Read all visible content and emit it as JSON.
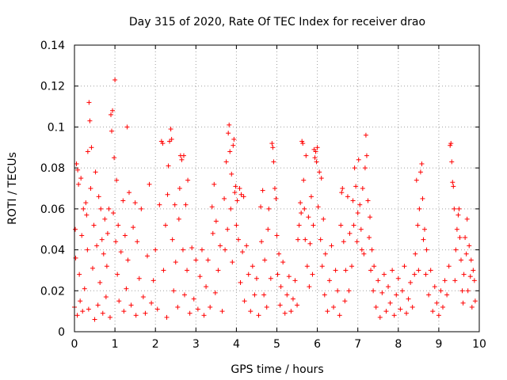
{
  "chart_data": {
    "type": "scatter",
    "title": "Day 315 of 2020, Rate Of TEC Index for receiver drao",
    "xlabel": "GPS time / hours",
    "ylabel": "ROTI / TECUs",
    "xlim": [
      0,
      10
    ],
    "ylim": [
      0,
      0.14
    ],
    "xticks": [
      "0",
      "1",
      "2",
      "3",
      "4",
      "5",
      "6",
      "7",
      "8",
      "9",
      "10"
    ],
    "yticks": [
      "0",
      "0.02",
      "0.04",
      "0.06",
      "0.08",
      "0.1",
      "0.12",
      "0.14"
    ],
    "grid": true,
    "marker": "+",
    "color": "#ff0000",
    "series": [
      {
        "values": [
          [
            0.0,
            0.012
          ],
          [
            0.02,
            0.05
          ],
          [
            0.03,
            0.036
          ],
          [
            0.05,
            0.082
          ],
          [
            0.07,
            0.008
          ],
          [
            0.08,
            0.079
          ],
          [
            0.1,
            0.072
          ],
          [
            0.12,
            0.028
          ],
          [
            0.14,
            0.015
          ],
          [
            0.16,
            0.075
          ],
          [
            0.18,
            0.047
          ],
          [
            0.2,
            0.01
          ],
          [
            0.22,
            0.06
          ],
          [
            0.25,
            0.021
          ],
          [
            0.28,
            0.063
          ],
          [
            0.3,
            0.057
          ],
          [
            0.32,
            0.04
          ],
          [
            0.33,
            0.088
          ],
          [
            0.35,
            0.011
          ],
          [
            0.36,
            0.112
          ],
          [
            0.38,
            0.103
          ],
          [
            0.4,
            0.07
          ],
          [
            0.42,
            0.09
          ],
          [
            0.45,
            0.031
          ],
          [
            0.48,
            0.052
          ],
          [
            0.5,
            0.006
          ],
          [
            0.52,
            0.078
          ],
          [
            0.55,
            0.042
          ],
          [
            0.58,
            0.013
          ],
          [
            0.6,
            0.066
          ],
          [
            0.63,
            0.024
          ],
          [
            0.65,
            0.06
          ],
          [
            0.68,
            0.045
          ],
          [
            0.7,
            0.009
          ],
          [
            0.72,
            0.038
          ],
          [
            0.75,
            0.055
          ],
          [
            0.78,
            0.017
          ],
          [
            0.8,
            0.032
          ],
          [
            0.82,
            0.048
          ],
          [
            0.85,
            0.06
          ],
          [
            0.88,
            0.007
          ],
          [
            0.9,
            0.106
          ],
          [
            0.92,
            0.098
          ],
          [
            0.94,
            0.108
          ],
          [
            0.96,
            0.058
          ],
          [
            0.98,
            0.085
          ],
          [
            1.0,
            0.123
          ],
          [
            1.02,
            0.044
          ],
          [
            1.04,
            0.074
          ],
          [
            1.06,
            0.028
          ],
          [
            1.08,
            0.052
          ],
          [
            1.1,
            0.015
          ],
          [
            1.15,
            0.039
          ],
          [
            1.2,
            0.064
          ],
          [
            1.22,
            0.01
          ],
          [
            1.25,
            0.047
          ],
          [
            1.28,
            0.021
          ],
          [
            1.3,
            0.1
          ],
          [
            1.32,
            0.035
          ],
          [
            1.35,
            0.068
          ],
          [
            1.4,
            0.013
          ],
          [
            1.45,
            0.051
          ],
          [
            1.5,
            0.063
          ],
          [
            1.52,
            0.008
          ],
          [
            1.55,
            0.044
          ],
          [
            1.6,
            0.026
          ],
          [
            1.65,
            0.06
          ],
          [
            1.7,
            0.017
          ],
          [
            1.75,
            0.009
          ],
          [
            1.8,
            0.037
          ],
          [
            1.85,
            0.072
          ],
          [
            1.9,
            0.014
          ],
          [
            1.95,
            0.025
          ],
          [
            2.0,
            0.04
          ],
          [
            2.05,
            0.011
          ],
          [
            2.1,
            0.062
          ],
          [
            2.15,
            0.093
          ],
          [
            2.18,
            0.092
          ],
          [
            2.2,
            0.03
          ],
          [
            2.25,
            0.052
          ],
          [
            2.28,
            0.007
          ],
          [
            2.3,
            0.067
          ],
          [
            2.32,
            0.081
          ],
          [
            2.35,
            0.093
          ],
          [
            2.38,
            0.099
          ],
          [
            2.4,
            0.094
          ],
          [
            2.42,
            0.045
          ],
          [
            2.45,
            0.02
          ],
          [
            2.48,
            0.062
          ],
          [
            2.5,
            0.034
          ],
          [
            2.55,
            0.012
          ],
          [
            2.58,
            0.055
          ],
          [
            2.6,
            0.07
          ],
          [
            2.62,
            0.086
          ],
          [
            2.65,
            0.084
          ],
          [
            2.68,
            0.04
          ],
          [
            2.7,
            0.086
          ],
          [
            2.72,
            0.018
          ],
          [
            2.75,
            0.062
          ],
          [
            2.78,
            0.03
          ],
          [
            2.8,
            0.074
          ],
          [
            2.85,
            0.009
          ],
          [
            2.9,
            0.041
          ],
          [
            2.95,
            0.016
          ],
          [
            3.0,
            0.035
          ],
          [
            3.05,
            0.011
          ],
          [
            3.1,
            0.027
          ],
          [
            3.15,
            0.04
          ],
          [
            3.2,
            0.008
          ],
          [
            3.25,
            0.022
          ],
          [
            3.3,
            0.035
          ],
          [
            3.35,
            0.012
          ],
          [
            3.4,
            0.061
          ],
          [
            3.42,
            0.048
          ],
          [
            3.45,
            0.072
          ],
          [
            3.48,
            0.019
          ],
          [
            3.5,
            0.054
          ],
          [
            3.55,
            0.03
          ],
          [
            3.6,
            0.042
          ],
          [
            3.65,
            0.01
          ],
          [
            3.7,
            0.065
          ],
          [
            3.72,
            0.04
          ],
          [
            3.75,
            0.083
          ],
          [
            3.78,
            0.05
          ],
          [
            3.8,
            0.097
          ],
          [
            3.82,
            0.101
          ],
          [
            3.84,
            0.088
          ],
          [
            3.86,
            0.06
          ],
          [
            3.88,
            0.077
          ],
          [
            3.9,
            0.034
          ],
          [
            3.92,
            0.091
          ],
          [
            3.94,
            0.094
          ],
          [
            3.96,
            0.068
          ],
          [
            3.98,
            0.071
          ],
          [
            4.0,
            0.052
          ],
          [
            4.02,
            0.064
          ],
          [
            4.05,
            0.045
          ],
          [
            4.08,
            0.07
          ],
          [
            4.1,
            0.024
          ],
          [
            4.12,
            0.067
          ],
          [
            4.15,
            0.039
          ],
          [
            4.18,
            0.066
          ],
          [
            4.2,
            0.015
          ],
          [
            4.25,
            0.042
          ],
          [
            4.3,
            0.028
          ],
          [
            4.35,
            0.01
          ],
          [
            4.4,
            0.032
          ],
          [
            4.45,
            0.018
          ],
          [
            4.5,
            0.026
          ],
          [
            4.55,
            0.008
          ],
          [
            4.6,
            0.061
          ],
          [
            4.62,
            0.044
          ],
          [
            4.65,
            0.069
          ],
          [
            4.68,
            0.018
          ],
          [
            4.7,
            0.035
          ],
          [
            4.75,
            0.012
          ],
          [
            4.78,
            0.05
          ],
          [
            4.8,
            0.06
          ],
          [
            4.85,
            0.026
          ],
          [
            4.88,
            0.092
          ],
          [
            4.9,
            0.09
          ],
          [
            4.92,
            0.083
          ],
          [
            4.95,
            0.07
          ],
          [
            4.98,
            0.065
          ],
          [
            5.0,
            0.047
          ],
          [
            5.02,
            0.028
          ],
          [
            5.05,
            0.038
          ],
          [
            5.08,
            0.013
          ],
          [
            5.1,
            0.022
          ],
          [
            5.15,
            0.034
          ],
          [
            5.2,
            0.009
          ],
          [
            5.25,
            0.018
          ],
          [
            5.3,
            0.027
          ],
          [
            5.35,
            0.01
          ],
          [
            5.4,
            0.016
          ],
          [
            5.45,
            0.025
          ],
          [
            5.5,
            0.013
          ],
          [
            5.52,
            0.045
          ],
          [
            5.55,
            0.052
          ],
          [
            5.58,
            0.063
          ],
          [
            5.6,
            0.058
          ],
          [
            5.62,
            0.093
          ],
          [
            5.64,
            0.092
          ],
          [
            5.66,
            0.074
          ],
          [
            5.68,
            0.06
          ],
          [
            5.7,
            0.045
          ],
          [
            5.72,
            0.086
          ],
          [
            5.75,
            0.032
          ],
          [
            5.78,
            0.056
          ],
          [
            5.8,
            0.022
          ],
          [
            5.82,
            0.043
          ],
          [
            5.85,
            0.066
          ],
          [
            5.88,
            0.028
          ],
          [
            5.9,
            0.052
          ],
          [
            5.92,
            0.089
          ],
          [
            5.94,
            0.085
          ],
          [
            5.96,
            0.088
          ],
          [
            5.98,
            0.083
          ],
          [
            6.0,
            0.09
          ],
          [
            6.02,
            0.061
          ],
          [
            6.05,
            0.078
          ],
          [
            6.08,
            0.045
          ],
          [
            6.1,
            0.075
          ],
          [
            6.12,
            0.032
          ],
          [
            6.15,
            0.055
          ],
          [
            6.18,
            0.018
          ],
          [
            6.2,
            0.038
          ],
          [
            6.25,
            0.01
          ],
          [
            6.3,
            0.025
          ],
          [
            6.35,
            0.042
          ],
          [
            6.4,
            0.012
          ],
          [
            6.45,
            0.03
          ],
          [
            6.5,
            0.02
          ],
          [
            6.55,
            0.008
          ],
          [
            6.58,
            0.052
          ],
          [
            6.6,
            0.068
          ],
          [
            6.62,
            0.07
          ],
          [
            6.65,
            0.044
          ],
          [
            6.68,
            0.015
          ],
          [
            6.7,
            0.03
          ],
          [
            6.75,
            0.066
          ],
          [
            6.78,
            0.02
          ],
          [
            6.8,
            0.048
          ],
          [
            6.85,
            0.032
          ],
          [
            6.88,
            0.064
          ],
          [
            6.9,
            0.052
          ],
          [
            6.92,
            0.08
          ],
          [
            6.95,
            0.071
          ],
          [
            6.98,
            0.044
          ],
          [
            7.0,
            0.058
          ],
          [
            7.02,
            0.084
          ],
          [
            7.05,
            0.062
          ],
          [
            7.08,
            0.05
          ],
          [
            7.1,
            0.04
          ],
          [
            7.12,
            0.07
          ],
          [
            7.15,
            0.038
          ],
          [
            7.18,
            0.08
          ],
          [
            7.2,
            0.096
          ],
          [
            7.22,
            0.086
          ],
          [
            7.25,
            0.064
          ],
          [
            7.28,
            0.046
          ],
          [
            7.3,
            0.056
          ],
          [
            7.32,
            0.03
          ],
          [
            7.35,
            0.04
          ],
          [
            7.38,
            0.02
          ],
          [
            7.4,
            0.032
          ],
          [
            7.45,
            0.012
          ],
          [
            7.5,
            0.025
          ],
          [
            7.55,
            0.007
          ],
          [
            7.6,
            0.019
          ],
          [
            7.65,
            0.028
          ],
          [
            7.7,
            0.01
          ],
          [
            7.75,
            0.022
          ],
          [
            7.8,
            0.014
          ],
          [
            7.85,
            0.03
          ],
          [
            7.9,
            0.008
          ],
          [
            7.95,
            0.018
          ],
          [
            8.0,
            0.026
          ],
          [
            8.05,
            0.011
          ],
          [
            8.1,
            0.02
          ],
          [
            8.15,
            0.032
          ],
          [
            8.2,
            0.009
          ],
          [
            8.25,
            0.016
          ],
          [
            8.3,
            0.024
          ],
          [
            8.35,
            0.012
          ],
          [
            8.4,
            0.028
          ],
          [
            8.42,
            0.038
          ],
          [
            8.45,
            0.074
          ],
          [
            8.48,
            0.052
          ],
          [
            8.5,
            0.03
          ],
          [
            8.52,
            0.06
          ],
          [
            8.55,
            0.078
          ],
          [
            8.58,
            0.082
          ],
          [
            8.6,
            0.065
          ],
          [
            8.62,
            0.045
          ],
          [
            8.65,
            0.05
          ],
          [
            8.68,
            0.028
          ],
          [
            8.7,
            0.04
          ],
          [
            8.75,
            0.018
          ],
          [
            8.8,
            0.03
          ],
          [
            8.85,
            0.01
          ],
          [
            8.9,
            0.022
          ],
          [
            8.95,
            0.014
          ],
          [
            9.0,
            0.008
          ],
          [
            9.05,
            0.02
          ],
          [
            9.1,
            0.012
          ],
          [
            9.15,
            0.025
          ],
          [
            9.2,
            0.018
          ],
          [
            9.25,
            0.032
          ],
          [
            9.28,
            0.091
          ],
          [
            9.3,
            0.092
          ],
          [
            9.32,
            0.083
          ],
          [
            9.34,
            0.073
          ],
          [
            9.36,
            0.071
          ],
          [
            9.38,
            0.06
          ],
          [
            9.4,
            0.025
          ],
          [
            9.42,
            0.04
          ],
          [
            9.45,
            0.05
          ],
          [
            9.48,
            0.057
          ],
          [
            9.5,
            0.06
          ],
          [
            9.52,
            0.046
          ],
          [
            9.55,
            0.035
          ],
          [
            9.58,
            0.02
          ],
          [
            9.6,
            0.014
          ],
          [
            9.62,
            0.028
          ],
          [
            9.65,
            0.046
          ],
          [
            9.68,
            0.038
          ],
          [
            9.7,
            0.055
          ],
          [
            9.72,
            0.02
          ],
          [
            9.75,
            0.042
          ],
          [
            9.78,
            0.027
          ],
          [
            9.8,
            0.035
          ],
          [
            9.82,
            0.012
          ],
          [
            9.85,
            0.03
          ],
          [
            9.88,
            0.025
          ],
          [
            9.9,
            0.015
          ]
        ]
      }
    ]
  }
}
